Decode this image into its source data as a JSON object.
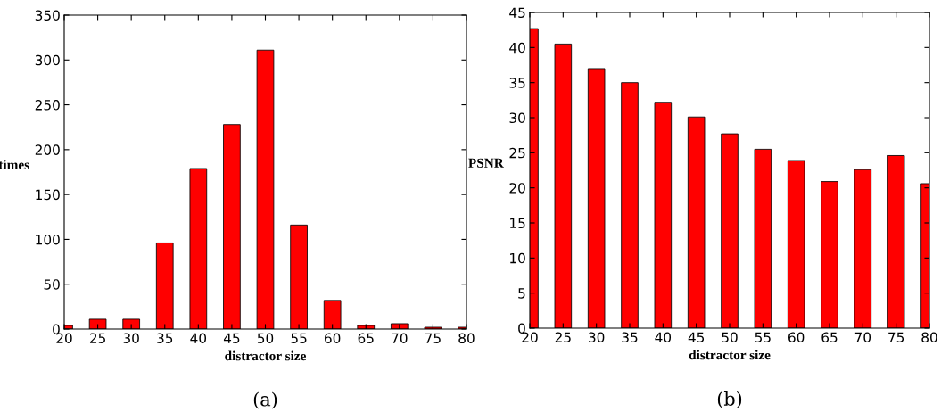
{
  "chart_data": [
    {
      "type": "bar",
      "xlabel": "distractor size",
      "ylabel": "times",
      "x": [
        20,
        25,
        30,
        35,
        40,
        45,
        50,
        55,
        60,
        65,
        70,
        75,
        80
      ],
      "values": [
        4,
        11,
        11,
        96,
        179,
        228,
        311,
        116,
        32,
        4,
        6,
        2,
        2
      ],
      "color": "#ff0000",
      "xlim": [
        20,
        80
      ],
      "xticks": [
        20,
        25,
        30,
        35,
        40,
        45,
        50,
        55,
        60,
        65,
        70,
        75,
        80
      ],
      "ylim": [
        0,
        350
      ],
      "yticks": [
        0,
        50,
        100,
        150,
        200,
        250,
        300,
        350
      ],
      "grid": false,
      "annotations": [
        "(a)"
      ]
    },
    {
      "type": "bar",
      "xlabel": "distractor size",
      "ylabel": "PSNR",
      "x": [
        20,
        25,
        30,
        35,
        40,
        45,
        50,
        55,
        60,
        65,
        70,
        75,
        80
      ],
      "values": [
        42.7,
        40.5,
        37,
        35,
        32.2,
        30.1,
        27.7,
        25.5,
        23.9,
        20.9,
        22.6,
        24.6,
        20.6
      ],
      "color": "#ff0000",
      "xlim": [
        20,
        80
      ],
      "xticks": [
        20,
        25,
        30,
        35,
        40,
        45,
        50,
        55,
        60,
        65,
        70,
        75,
        80
      ],
      "ylim": [
        0,
        45
      ],
      "yticks": [
        0,
        5,
        10,
        15,
        20,
        25,
        30,
        35,
        40,
        45
      ],
      "grid": false,
      "annotations": [
        "(b)"
      ]
    }
  ]
}
